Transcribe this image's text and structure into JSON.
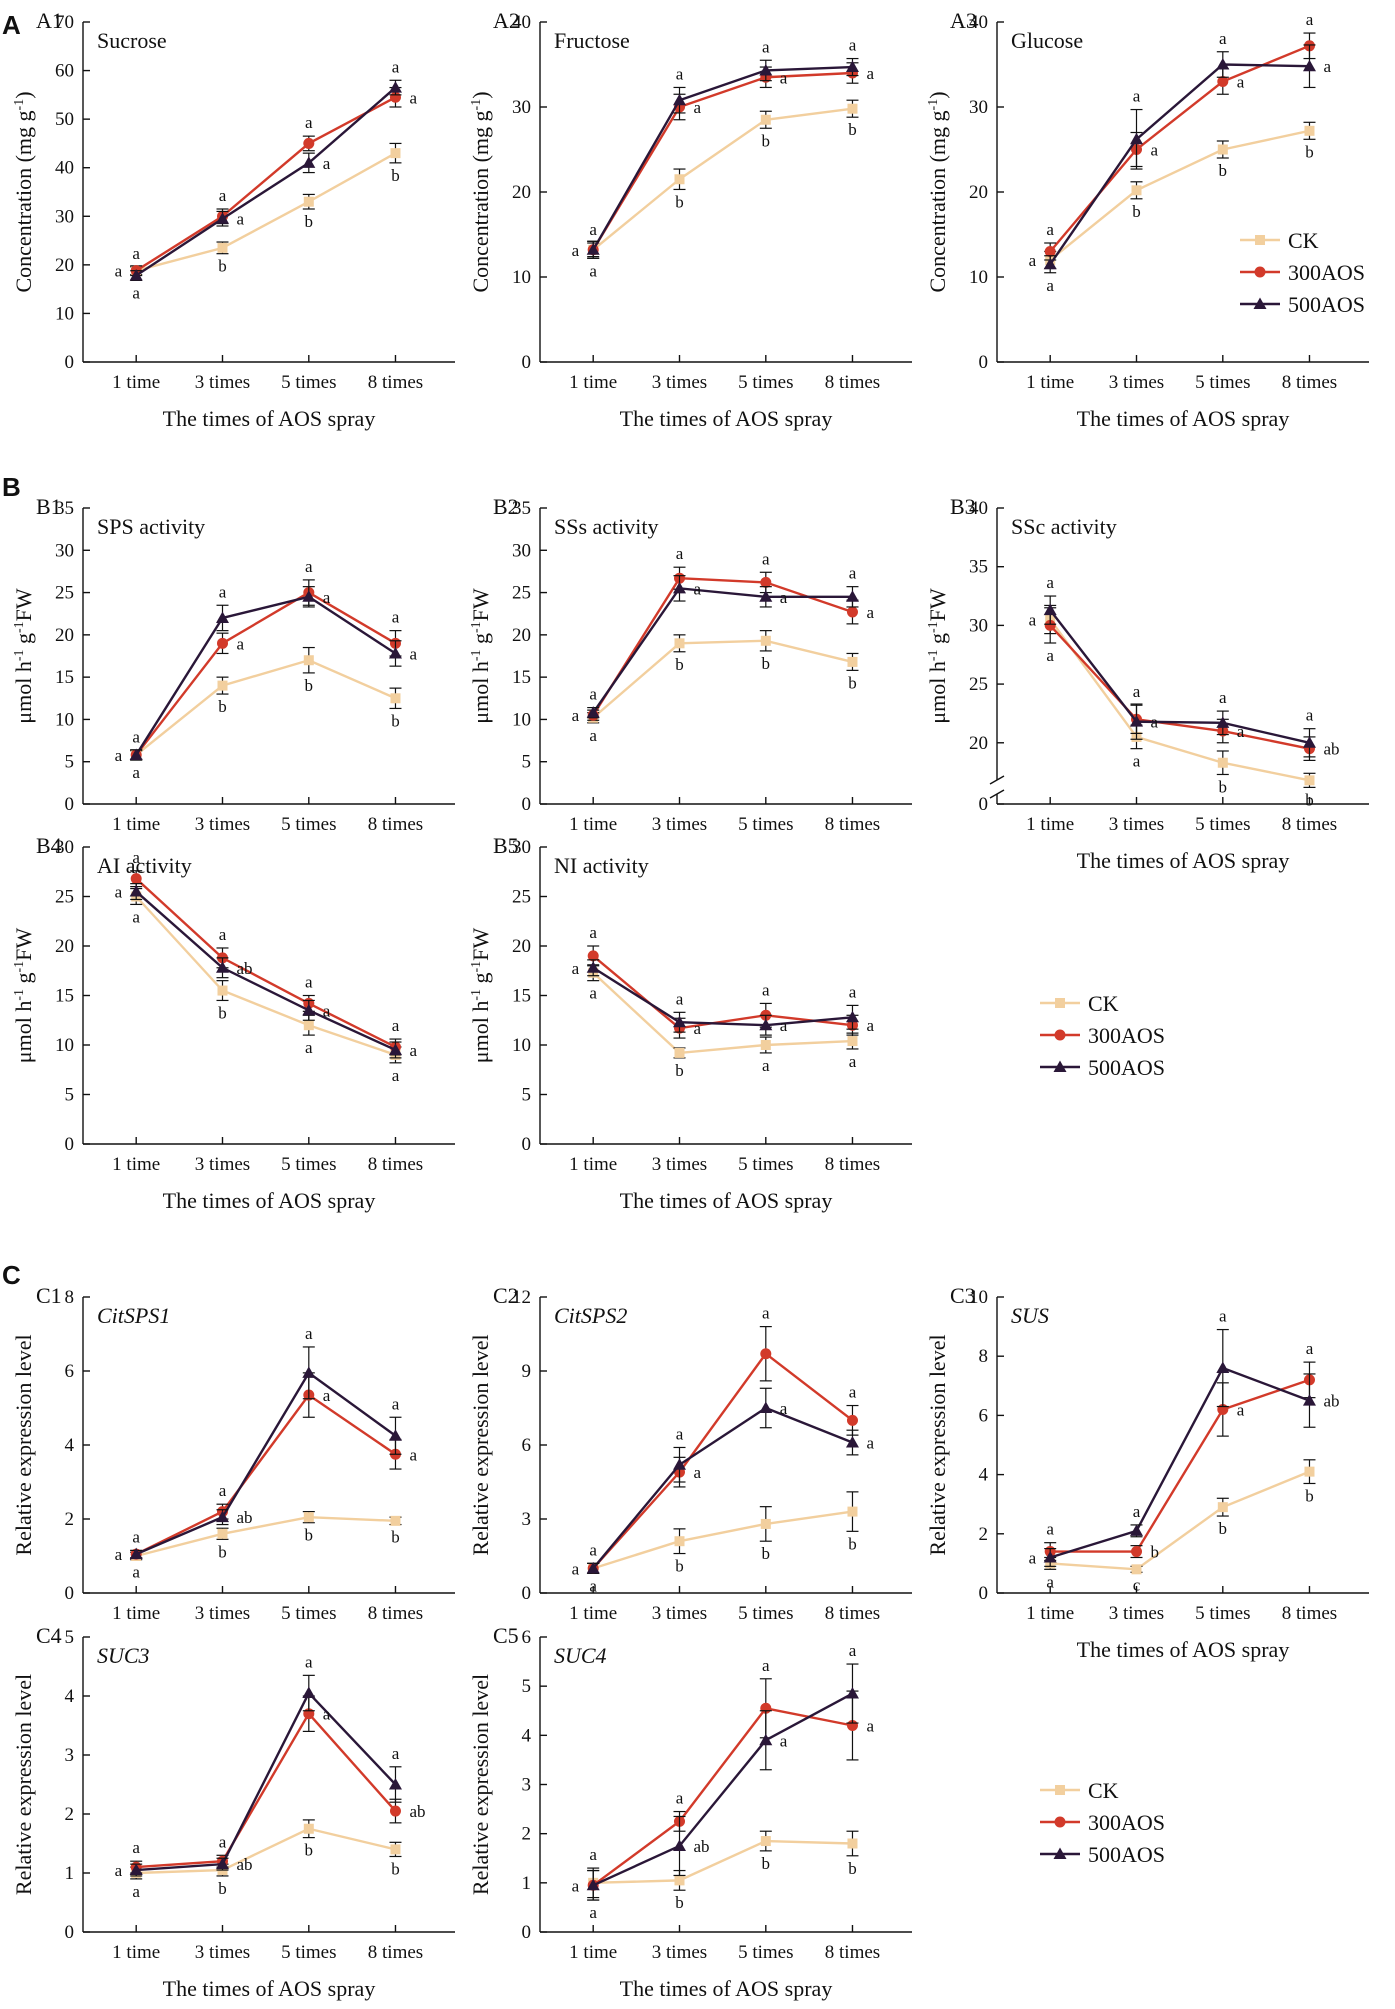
{
  "figure": {
    "section_labels": [
      "A",
      "B",
      "C"
    ],
    "legend_entries": [
      "CK",
      "300AOS",
      "500AOS"
    ],
    "colors": {
      "CK": "#f2cf9e",
      "300AOS": "#d23a2a",
      "500AOS": "#2a1738"
    }
  },
  "chart_data": [
    {
      "id": "A1",
      "type": "line",
      "title": "Sucrose",
      "ylabel": "Concentration (mg g-1)",
      "xlabel": "The times of AOS spray",
      "categories": [
        "1 time",
        "3 times",
        "5 times",
        "8 times"
      ],
      "ylim": [
        0,
        70
      ],
      "yticks": [
        0,
        10,
        20,
        30,
        40,
        50,
        60,
        70
      ],
      "series": [
        {
          "name": "CK",
          "values": [
            18.8,
            23.5,
            33.0,
            43.0
          ],
          "errors": [
            0.8,
            1.2,
            1.5,
            2.0
          ],
          "letters": [
            "a",
            "b",
            "b",
            "b"
          ]
        },
        {
          "name": "300AOS",
          "values": [
            18.8,
            30.0,
            45.0,
            54.5
          ],
          "errors": [
            1.0,
            1.5,
            1.5,
            2.0
          ],
          "letters": [
            "a",
            "a",
            "a",
            "a"
          ]
        },
        {
          "name": "500AOS",
          "values": [
            17.8,
            29.5,
            41.0,
            56.5
          ],
          "errors": [
            1.0,
            1.5,
            2.0,
            1.5
          ],
          "letters": [
            "a",
            "a",
            "a",
            "a"
          ]
        }
      ]
    },
    {
      "id": "A2",
      "type": "line",
      "title": "Fructose",
      "ylabel": "Concentration (mg g-1)",
      "xlabel": "The times of AOS spray",
      "categories": [
        "1 time",
        "3 times",
        "5 times",
        "8 times"
      ],
      "ylim": [
        0,
        40
      ],
      "yticks": [
        0,
        10,
        20,
        30,
        40
      ],
      "series": [
        {
          "name": "CK",
          "values": [
            13.2,
            21.5,
            28.5,
            29.8
          ],
          "errors": [
            0.8,
            1.2,
            1.0,
            1.0
          ],
          "letters": [
            "a",
            "b",
            "b",
            "b"
          ]
        },
        {
          "name": "300AOS",
          "values": [
            13.2,
            30.0,
            33.5,
            34.0
          ],
          "errors": [
            1.0,
            1.5,
            1.2,
            1.2
          ],
          "letters": [
            "a",
            "a",
            "a",
            "a"
          ]
        },
        {
          "name": "500AOS",
          "values": [
            13.2,
            30.8,
            34.3,
            34.7
          ],
          "errors": [
            1.0,
            1.5,
            1.2,
            1.0
          ],
          "letters": [
            "a",
            "a",
            "a",
            "a"
          ]
        }
      ]
    },
    {
      "id": "A3",
      "type": "line",
      "title": "Glucose",
      "ylabel": "Concentration (mg g-1)",
      "xlabel": "The times of AOS spray",
      "categories": [
        "1 time",
        "3 times",
        "5 times",
        "8 times"
      ],
      "ylim": [
        0,
        40
      ],
      "yticks": [
        0,
        10,
        20,
        30,
        40
      ],
      "series": [
        {
          "name": "CK",
          "values": [
            12.0,
            20.2,
            25.0,
            27.2
          ],
          "errors": [
            1.0,
            1.0,
            1.0,
            1.0
          ],
          "letters": [
            "a",
            "b",
            "b",
            "b"
          ]
        },
        {
          "name": "300AOS",
          "values": [
            13.0,
            25.0,
            33.0,
            37.2
          ],
          "errors": [
            1.0,
            2.0,
            1.5,
            1.5
          ],
          "letters": [
            "a",
            "a",
            "a",
            "a"
          ]
        },
        {
          "name": "500AOS",
          "values": [
            11.5,
            26.2,
            35.0,
            34.8
          ],
          "errors": [
            1.0,
            3.5,
            1.5,
            2.5
          ],
          "letters": [
            "a",
            "a",
            "a",
            "a"
          ]
        }
      ]
    },
    {
      "id": "B1",
      "type": "line",
      "title": "SPS activity",
      "ylabel": "μmol h-1 g-1FW",
      "xlabel": "",
      "categories": [
        "1 time",
        "3 times",
        "5 times",
        "8 times"
      ],
      "ylim": [
        0,
        35
      ],
      "yticks": [
        0,
        5,
        10,
        15,
        20,
        25,
        30,
        35
      ],
      "series": [
        {
          "name": "CK",
          "values": [
            5.8,
            14.0,
            17.0,
            12.5
          ],
          "errors": [
            0.5,
            1.0,
            1.5,
            1.2
          ],
          "letters": [
            "a",
            "b",
            "b",
            "b"
          ]
        },
        {
          "name": "300AOS",
          "values": [
            5.8,
            19.0,
            25.0,
            19.0
          ],
          "errors": [
            0.6,
            1.2,
            1.5,
            1.5
          ],
          "letters": [
            "a",
            "a",
            "a",
            "a"
          ]
        },
        {
          "name": "500AOS",
          "values": [
            5.8,
            22.0,
            24.5,
            17.8
          ],
          "errors": [
            0.6,
            1.5,
            1.2,
            1.5
          ],
          "letters": [
            "a",
            "a",
            "a",
            "a"
          ]
        }
      ]
    },
    {
      "id": "B2",
      "type": "line",
      "title": "SSs activity",
      "ylabel": "μmol h-1 g-1FW",
      "xlabel": "",
      "categories": [
        "1 time",
        "3 times",
        "5 times",
        "8 times"
      ],
      "ylim": [
        0,
        35
      ],
      "yticks": [
        0,
        5,
        10,
        15,
        20,
        25,
        30,
        35
      ],
      "series": [
        {
          "name": "CK",
          "values": [
            10.2,
            19.0,
            19.3,
            16.8
          ],
          "errors": [
            0.6,
            1.0,
            1.2,
            1.0
          ],
          "letters": [
            "a",
            "b",
            "b",
            "b"
          ]
        },
        {
          "name": "300AOS",
          "values": [
            10.5,
            26.7,
            26.2,
            22.7
          ],
          "errors": [
            0.6,
            1.3,
            1.2,
            1.4
          ],
          "letters": [
            "a",
            "a",
            "a",
            "a"
          ]
        },
        {
          "name": "500AOS",
          "values": [
            10.8,
            25.5,
            24.5,
            24.5
          ],
          "errors": [
            0.6,
            1.5,
            1.2,
            1.2
          ],
          "letters": [
            "a",
            "a",
            "a",
            "a"
          ]
        }
      ]
    },
    {
      "id": "B3",
      "type": "line",
      "title": "SSc activity",
      "ylabel": "μmol h-1 g-1FW",
      "xlabel": "The times of AOS spray",
      "categories": [
        "1 time",
        "3 times",
        "5 times",
        "8 times"
      ],
      "ylim": [
        0,
        40
      ],
      "yticks": [
        0,
        20,
        25,
        30,
        35,
        40
      ],
      "axis_break": [
        0,
        17
      ],
      "series": [
        {
          "name": "CK",
          "values": [
            30.5,
            20.5,
            18.3,
            16.8
          ],
          "errors": [
            1.2,
            1.0,
            1.0,
            0.6
          ],
          "letters": [
            "a",
            "a",
            "b",
            "b"
          ]
        },
        {
          "name": "300AOS",
          "values": [
            30.0,
            22.0,
            21.0,
            19.5
          ],
          "errors": [
            1.5,
            1.2,
            1.0,
            1.0
          ],
          "letters": [
            "a",
            "a",
            "a",
            "ab"
          ]
        },
        {
          "name": "500AOS",
          "values": [
            31.3,
            21.8,
            21.7,
            20.0
          ],
          "errors": [
            1.2,
            1.5,
            1.0,
            1.2
          ],
          "letters": [
            "a",
            "a",
            "a",
            "a"
          ]
        }
      ]
    },
    {
      "id": "B4",
      "type": "line",
      "title": "AI activity",
      "ylabel": "μmol h-1 g-1FW",
      "xlabel": "The times of AOS spray",
      "categories": [
        "1 time",
        "3 times",
        "5 times",
        "8 times"
      ],
      "ylim": [
        0,
        30
      ],
      "yticks": [
        0,
        5,
        10,
        15,
        20,
        25,
        30
      ],
      "series": [
        {
          "name": "CK",
          "values": [
            25.0,
            15.5,
            12.0,
            9.0
          ],
          "errors": [
            0.8,
            1.0,
            1.0,
            0.8
          ],
          "letters": [
            "a",
            "b",
            "a",
            "a"
          ]
        },
        {
          "name": "300AOS",
          "values": [
            26.8,
            18.8,
            14.2,
            9.8
          ],
          "errors": [
            0.8,
            1.0,
            0.8,
            0.8
          ],
          "letters": [
            "a",
            "a",
            "a",
            "a"
          ]
        },
        {
          "name": "500AOS",
          "values": [
            25.5,
            17.8,
            13.5,
            9.5
          ],
          "errors": [
            0.8,
            1.0,
            1.0,
            0.8
          ],
          "letters": [
            "a",
            "ab",
            "a",
            "a"
          ]
        }
      ]
    },
    {
      "id": "B5",
      "type": "line",
      "title": "NI activity",
      "ylabel": "μmol h-1 g-1FW",
      "xlabel": "The times of AOS spray",
      "categories": [
        "1 time",
        "3 times",
        "5 times",
        "8 times"
      ],
      "ylim": [
        0,
        30
      ],
      "yticks": [
        0,
        5,
        10,
        15,
        20,
        25,
        30
      ],
      "series": [
        {
          "name": "CK",
          "values": [
            17.3,
            9.2,
            10.0,
            10.4
          ],
          "errors": [
            0.8,
            0.5,
            0.8,
            0.8
          ],
          "letters": [
            "a",
            "b",
            "a",
            "a"
          ]
        },
        {
          "name": "300AOS",
          "values": [
            19.0,
            11.7,
            13.0,
            12.0
          ],
          "errors": [
            1.0,
            1.0,
            1.2,
            1.0
          ],
          "letters": [
            "a",
            "a",
            "a",
            "a"
          ]
        },
        {
          "name": "500AOS",
          "values": [
            17.8,
            12.3,
            12.0,
            12.8
          ],
          "errors": [
            0.8,
            1.0,
            1.0,
            1.2
          ],
          "letters": [
            "a",
            "a",
            "a",
            "a"
          ]
        }
      ]
    },
    {
      "id": "C1",
      "type": "line",
      "title": "CitSPS1",
      "ylabel": "Relative expression level",
      "xlabel": "",
      "categories": [
        "1 time",
        "3 times",
        "5 times",
        "8 times"
      ],
      "ylim": [
        0,
        8
      ],
      "yticks": [
        0,
        2,
        4,
        6,
        8
      ],
      "series": [
        {
          "name": "CK",
          "values": [
            1.0,
            1.6,
            2.05,
            1.95
          ],
          "errors": [
            0.1,
            0.15,
            0.15,
            0.1
          ],
          "letters": [
            "a",
            "b",
            "b",
            "b"
          ]
        },
        {
          "name": "300AOS",
          "values": [
            1.05,
            2.2,
            5.35,
            3.75
          ],
          "errors": [
            0.1,
            0.2,
            0.6,
            0.4
          ],
          "letters": [
            "a",
            "a",
            "a",
            "a"
          ]
        },
        {
          "name": "500AOS",
          "values": [
            1.05,
            2.05,
            5.95,
            4.25
          ],
          "errors": [
            0.1,
            0.2,
            0.7,
            0.5
          ],
          "letters": [
            "a",
            "ab",
            "a",
            "a"
          ]
        }
      ]
    },
    {
      "id": "C2",
      "type": "line",
      "title": "CitSPS2",
      "ylabel": "Relative expression level",
      "xlabel": "",
      "categories": [
        "1 time",
        "3 times",
        "5 times",
        "8 times"
      ],
      "ylim": [
        0,
        12
      ],
      "yticks": [
        0,
        3,
        6,
        9,
        12
      ],
      "series": [
        {
          "name": "CK",
          "values": [
            1.0,
            2.1,
            2.8,
            3.3
          ],
          "errors": [
            0.2,
            0.5,
            0.7,
            0.8
          ],
          "letters": [
            "a",
            "b",
            "b",
            "b"
          ]
        },
        {
          "name": "300AOS",
          "values": [
            1.0,
            4.9,
            9.7,
            7.0
          ],
          "errors": [
            0.2,
            0.6,
            1.1,
            0.6
          ],
          "letters": [
            "a",
            "a",
            "a",
            "a"
          ]
        },
        {
          "name": "500AOS",
          "values": [
            1.0,
            5.2,
            7.5,
            6.1
          ],
          "errors": [
            0.2,
            0.7,
            0.8,
            0.5
          ],
          "letters": [
            "a",
            "a",
            "a",
            "a"
          ]
        }
      ]
    },
    {
      "id": "C3",
      "type": "line",
      "title": "SUS",
      "ylabel": "Relative expression level",
      "xlabel": "The times of AOS spray",
      "categories": [
        "1 time",
        "3 times",
        "5 times",
        "8 times"
      ],
      "ylim": [
        0,
        10
      ],
      "yticks": [
        0,
        2,
        4,
        6,
        8,
        10
      ],
      "series": [
        {
          "name": "CK",
          "values": [
            1.0,
            0.8,
            2.9,
            4.1
          ],
          "errors": [
            0.2,
            0.1,
            0.3,
            0.4
          ],
          "letters": [
            "a",
            "c",
            "b",
            "b"
          ]
        },
        {
          "name": "300AOS",
          "values": [
            1.4,
            1.4,
            6.2,
            7.2
          ],
          "errors": [
            0.3,
            0.2,
            0.9,
            0.6
          ],
          "letters": [
            "a",
            "b",
            "a",
            "a"
          ]
        },
        {
          "name": "500AOS",
          "values": [
            1.2,
            2.1,
            7.6,
            6.5
          ],
          "errors": [
            0.3,
            0.2,
            1.3,
            0.9
          ],
          "letters": [
            "a",
            "a",
            "a",
            "ab"
          ]
        }
      ]
    },
    {
      "id": "C4",
      "type": "line",
      "title": "SUC3",
      "ylabel": "Relative expression level",
      "xlabel": "The times of AOS spray",
      "categories": [
        "1 time",
        "3 times",
        "5 times",
        "8 times"
      ],
      "ylim": [
        0,
        5
      ],
      "yticks": [
        0,
        1,
        2,
        3,
        4,
        5
      ],
      "series": [
        {
          "name": "CK",
          "values": [
            1.0,
            1.05,
            1.75,
            1.4
          ],
          "errors": [
            0.1,
            0.1,
            0.15,
            0.12
          ],
          "letters": [
            "a",
            "b",
            "b",
            "b"
          ]
        },
        {
          "name": "300AOS",
          "values": [
            1.1,
            1.2,
            3.7,
            2.05
          ],
          "errors": [
            0.1,
            0.1,
            0.3,
            0.2
          ],
          "letters": [
            "a",
            "a",
            "a",
            "ab"
          ]
        },
        {
          "name": "500AOS",
          "values": [
            1.05,
            1.15,
            4.05,
            2.5
          ],
          "errors": [
            0.1,
            0.1,
            0.3,
            0.3
          ],
          "letters": [
            "a",
            "ab",
            "a",
            "a"
          ]
        }
      ]
    },
    {
      "id": "C5",
      "type": "line",
      "title": "SUC4",
      "ylabel": "Relative expression level",
      "xlabel": "The times of AOS spray",
      "categories": [
        "1 time",
        "3 times",
        "5 times",
        "8 times"
      ],
      "ylim": [
        0,
        6
      ],
      "yticks": [
        0,
        1,
        2,
        3,
        4,
        5,
        6
      ],
      "series": [
        {
          "name": "CK",
          "values": [
            1.0,
            1.05,
            1.85,
            1.8
          ],
          "errors": [
            0.3,
            0.2,
            0.2,
            0.25
          ],
          "letters": [
            "a",
            "b",
            "b",
            "b"
          ]
        },
        {
          "name": "300AOS",
          "values": [
            0.95,
            2.25,
            4.55,
            4.2
          ],
          "errors": [
            0.3,
            0.2,
            0.6,
            0.7
          ],
          "letters": [
            "a",
            "a",
            "a",
            "a"
          ]
        },
        {
          "name": "500AOS",
          "values": [
            0.95,
            1.75,
            3.9,
            4.85
          ],
          "errors": [
            0.3,
            0.6,
            0.6,
            0.6
          ],
          "letters": [
            "a",
            "ab",
            "a",
            "a"
          ]
        }
      ]
    }
  ]
}
